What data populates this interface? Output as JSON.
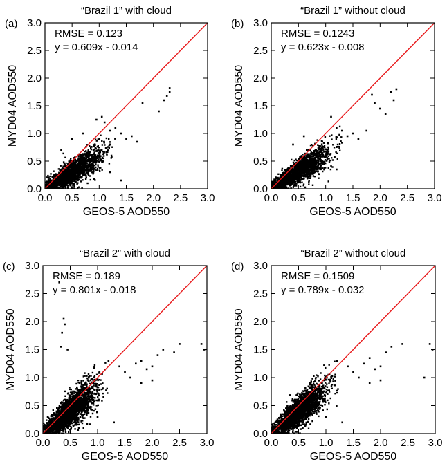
{
  "chart_data": [
    {
      "type": "scatter",
      "panel": "(a)",
      "title": "“Brazil 1” with cloud",
      "xlabel": "GEOS-5 AOD550",
      "ylabel": "MYD04 AOD550",
      "xlim": [
        0,
        3.0
      ],
      "ylim": [
        0,
        3.0
      ],
      "xticks": [
        "0.0",
        "0.5",
        "1.0",
        "1.5",
        "2.0",
        "2.5",
        "3.0"
      ],
      "yticks": [
        "0.0",
        "0.5",
        "1.0",
        "1.5",
        "2.0",
        "2.5",
        "3.0"
      ],
      "annotations": [
        "RMSE = 0.123",
        "y = 0.609x - 0.014"
      ],
      "reference_line": {
        "slope": 1,
        "intercept": 0,
        "color": "#e8191b"
      },
      "point_color": "#000000",
      "points": [
        [
          1.1,
          1.2
        ],
        [
          1.2,
          1.05
        ],
        [
          1.3,
          1.1
        ],
        [
          1.4,
          1.0
        ],
        [
          1.5,
          0.9
        ],
        [
          1.6,
          0.95
        ],
        [
          1.7,
          0.85
        ],
        [
          1.2,
          0.3
        ],
        [
          1.4,
          0.15
        ],
        [
          1.8,
          1.55
        ],
        [
          2.1,
          1.4
        ],
        [
          2.2,
          1.6
        ],
        [
          2.3,
          1.75
        ],
        [
          2.3,
          1.82
        ],
        [
          2.25,
          1.68
        ],
        [
          0.7,
          1.0
        ],
        [
          0.5,
          0.9
        ],
        [
          0.3,
          0.7
        ],
        [
          1.05,
          1.3
        ],
        [
          0.95,
          1.25
        ]
      ],
      "cloud": {
        "x_center": 0.5,
        "slope": 0.6,
        "spread_x": 0.35,
        "spread_y": 0.13,
        "count": 1800
      }
    },
    {
      "type": "scatter",
      "panel": "(b)",
      "title": "“Brazil 1” without cloud",
      "xlabel": "GEOS-5 AOD550",
      "ylabel": "MYD04 AOD550",
      "xlim": [
        0,
        3.0
      ],
      "ylim": [
        0,
        3.0
      ],
      "xticks": [
        "0.0",
        "0.5",
        "1.0",
        "1.5",
        "2.0",
        "2.5",
        "3.0"
      ],
      "yticks": [
        "0.0",
        "0.5",
        "1.0",
        "1.5",
        "2.0",
        "2.5",
        "3.0"
      ],
      "annotations": [
        "RMSE = 0.1243",
        "y = 0.623x - 0.008"
      ],
      "reference_line": {
        "slope": 1,
        "intercept": 0,
        "color": "#e8191b"
      },
      "point_color": "#000000",
      "points": [
        [
          1.1,
          1.3
        ],
        [
          1.2,
          1.1
        ],
        [
          1.3,
          1.05
        ],
        [
          1.4,
          0.95
        ],
        [
          1.5,
          1.0
        ],
        [
          1.6,
          0.9
        ],
        [
          1.75,
          1.05
        ],
        [
          1.85,
          1.7
        ],
        [
          1.9,
          1.55
        ],
        [
          2.0,
          1.45
        ],
        [
          2.1,
          1.35
        ],
        [
          2.2,
          1.75
        ],
        [
          2.3,
          1.8
        ],
        [
          2.25,
          1.6
        ],
        [
          1.2,
          0.35
        ],
        [
          0.6,
          0.95
        ],
        [
          0.4,
          0.8
        ]
      ],
      "cloud": {
        "x_center": 0.5,
        "slope": 0.62,
        "spread_x": 0.35,
        "spread_y": 0.13,
        "count": 1800
      }
    },
    {
      "type": "scatter",
      "panel": "(c)",
      "title": "“Brazil 2” with cloud",
      "xlabel": "GEOS-5 AOD550",
      "ylabel": "MYD04 AOD550",
      "xlim": [
        0,
        3.0
      ],
      "ylim": [
        0,
        3.0
      ],
      "xticks": [
        "0.0",
        "0.5",
        "1.0",
        "1.5",
        "2.0",
        "2.5",
        "3.0"
      ],
      "yticks": [
        "0.0",
        "0.5",
        "1.0",
        "1.5",
        "2.0",
        "2.5",
        "3.0"
      ],
      "annotations": [
        "RMSE = 0.189",
        "y = 0.801x - 0.018"
      ],
      "reference_line": {
        "slope": 1,
        "intercept": 0,
        "color": "#e8191b"
      },
      "point_color": "#000000",
      "points": [
        [
          0.3,
          2.7
        ],
        [
          0.38,
          2.05
        ],
        [
          0.4,
          1.95
        ],
        [
          0.35,
          1.8
        ],
        [
          0.33,
          1.55
        ],
        [
          0.45,
          1.5
        ],
        [
          1.2,
          1.3
        ],
        [
          1.4,
          1.2
        ],
        [
          1.5,
          1.1
        ],
        [
          1.6,
          1.0
        ],
        [
          1.7,
          1.25
        ],
        [
          1.8,
          1.3
        ],
        [
          1.9,
          1.15
        ],
        [
          2.0,
          1.2
        ],
        [
          2.1,
          1.4
        ],
        [
          2.2,
          1.5
        ],
        [
          2.4,
          1.45
        ],
        [
          2.5,
          1.6
        ],
        [
          2.9,
          1.6
        ],
        [
          2.95,
          1.5
        ],
        [
          2.0,
          0.95
        ],
        [
          1.8,
          0.9
        ],
        [
          1.3,
          0.2
        ],
        [
          1.0,
          0.3
        ]
      ],
      "cloud": {
        "x_center": 0.5,
        "slope": 0.8,
        "spread_x": 0.3,
        "spread_y": 0.17,
        "count": 2200
      }
    },
    {
      "type": "scatter",
      "panel": "(d)",
      "title": "“Brazil 2” without cloud",
      "xlabel": "GEOS-5 AOD550",
      "ylabel": "MYD04 AOD550",
      "xlim": [
        0,
        3.0
      ],
      "ylim": [
        0,
        3.0
      ],
      "xticks": [
        "0.0",
        "0.5",
        "1.0",
        "1.5",
        "2.0",
        "2.5",
        "3.0"
      ],
      "yticks": [
        "0.0",
        "0.5",
        "1.0",
        "1.5",
        "2.0",
        "2.5",
        "3.0"
      ],
      "annotations": [
        "RMSE = 0.1509",
        "y = 0.789x - 0.032"
      ],
      "reference_line": {
        "slope": 1,
        "intercept": 0,
        "color": "#e8191b"
      },
      "point_color": "#000000",
      "points": [
        [
          1.2,
          1.3
        ],
        [
          1.4,
          1.2
        ],
        [
          1.5,
          1.1
        ],
        [
          1.6,
          1.0
        ],
        [
          1.7,
          1.25
        ],
        [
          1.8,
          1.35
        ],
        [
          1.9,
          1.15
        ],
        [
          2.0,
          1.2
        ],
        [
          2.1,
          1.45
        ],
        [
          2.2,
          1.55
        ],
        [
          2.4,
          1.6
        ],
        [
          2.9,
          1.6
        ],
        [
          2.95,
          1.5
        ],
        [
          2.0,
          0.95
        ],
        [
          1.8,
          0.9
        ],
        [
          1.3,
          0.2
        ],
        [
          1.0,
          0.3
        ],
        [
          2.8,
          1.0
        ]
      ],
      "cloud": {
        "x_center": 0.5,
        "slope": 0.79,
        "spread_x": 0.3,
        "spread_y": 0.16,
        "count": 2200
      }
    }
  ]
}
